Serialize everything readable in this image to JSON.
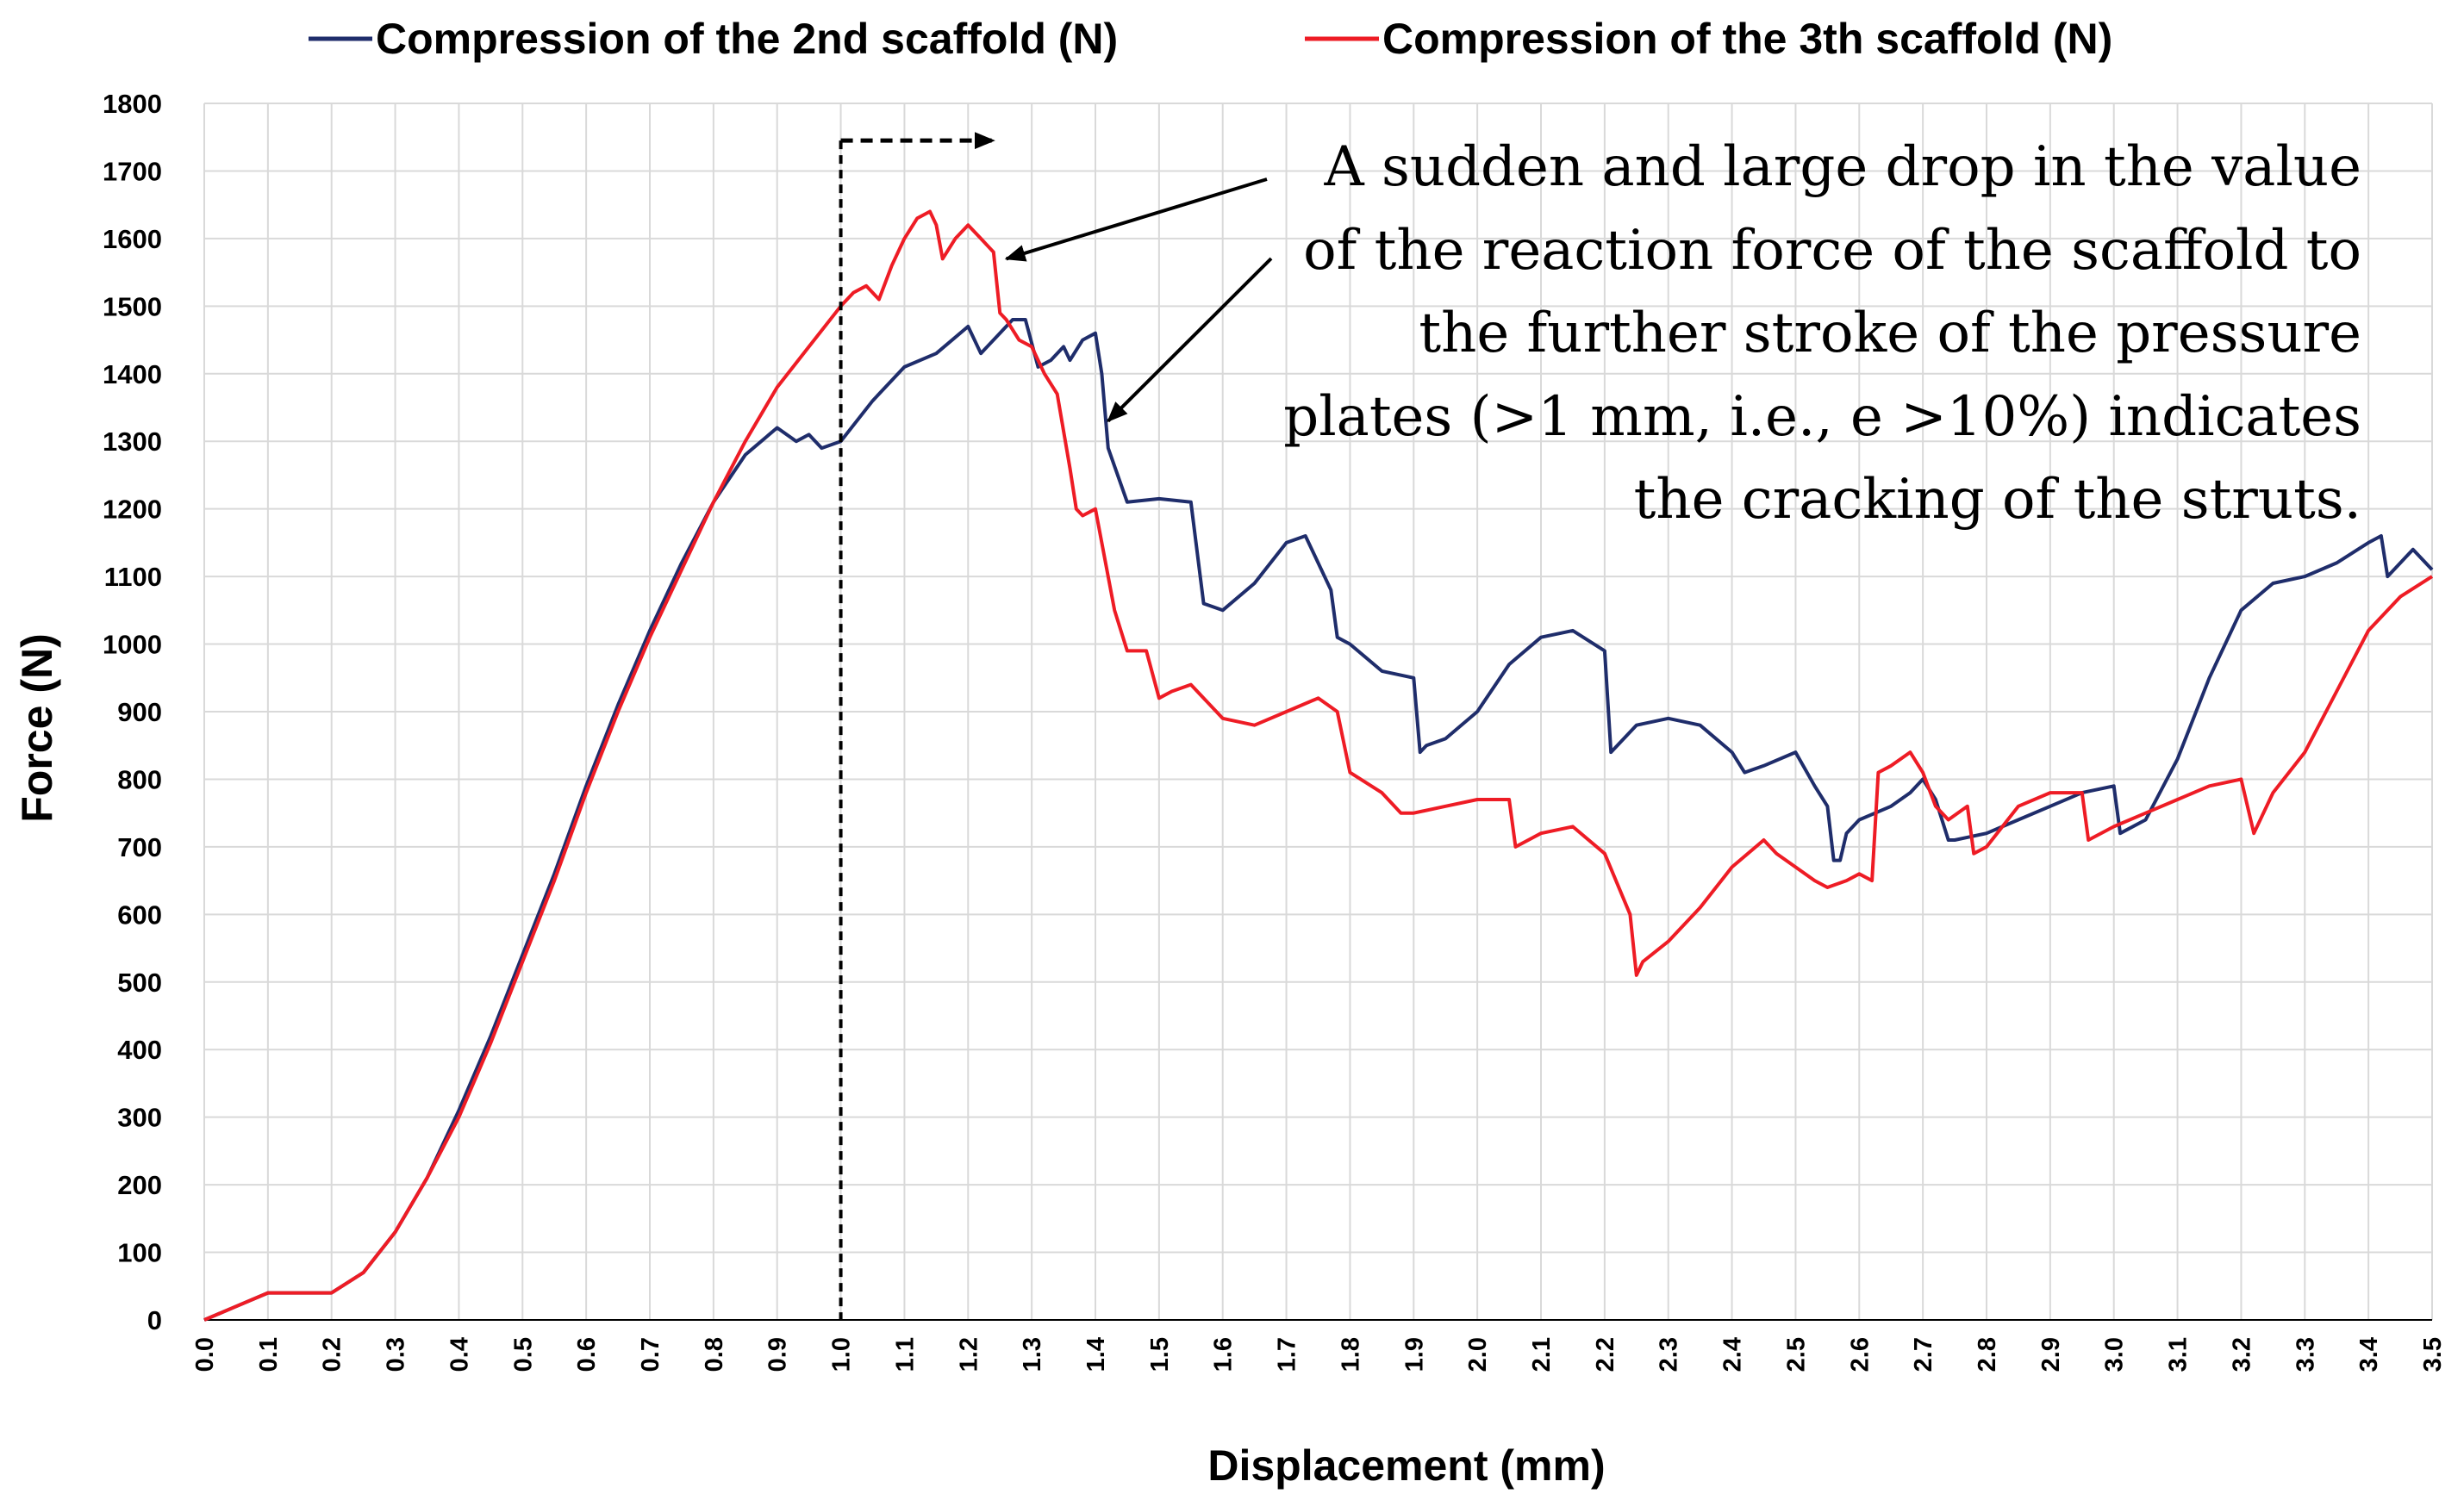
{
  "colors": {
    "series1": "#1f2d6b",
    "series2": "#ee1c25",
    "grid": "#d9d9d9",
    "axis": "#000000"
  },
  "chart_data": {
    "type": "line",
    "xlabel": "Displacement (mm)",
    "ylabel": "Force (N)",
    "xlim": [
      0,
      3.5
    ],
    "ylim": [
      0,
      1800
    ],
    "x_ticks": [
      "0.0",
      "0.1",
      "0.2",
      "0.3",
      "0.4",
      "0.5",
      "0.6",
      "0.7",
      "0.8",
      "0.9",
      "1.0",
      "1.1",
      "1.2",
      "1.3",
      "1.4",
      "1.5",
      "1.6",
      "1.7",
      "1.8",
      "1.9",
      "2.0",
      "2.1",
      "2.2",
      "2.3",
      "2.4",
      "2.5",
      "2.6",
      "2.7",
      "2.8",
      "2.9",
      "3.0",
      "3.1",
      "3.2",
      "3.3",
      "3.4",
      "3.5"
    ],
    "y_ticks": [
      "0",
      "100",
      "200",
      "300",
      "400",
      "500",
      "600",
      "700",
      "800",
      "900",
      "1000",
      "1100",
      "1200",
      "1300",
      "1400",
      "1500",
      "1600",
      "1700",
      "1800"
    ],
    "grid": true,
    "legend_position": "top",
    "series": [
      {
        "name": "Compression of the 2nd scaffold (N)",
        "color": "#1f2d6b",
        "x": [
          0,
          0.05,
          0.1,
          0.15,
          0.2,
          0.25,
          0.3,
          0.35,
          0.4,
          0.45,
          0.5,
          0.55,
          0.6,
          0.65,
          0.7,
          0.75,
          0.8,
          0.85,
          0.9,
          0.93,
          0.95,
          0.97,
          1.0,
          1.05,
          1.1,
          1.15,
          1.2,
          1.22,
          1.25,
          1.27,
          1.29,
          1.31,
          1.33,
          1.35,
          1.36,
          1.38,
          1.4,
          1.41,
          1.42,
          1.45,
          1.5,
          1.55,
          1.57,
          1.6,
          1.65,
          1.7,
          1.73,
          1.75,
          1.77,
          1.78,
          1.8,
          1.85,
          1.9,
          1.91,
          1.92,
          1.95,
          2.0,
          2.05,
          2.1,
          2.15,
          2.2,
          2.21,
          2.25,
          2.3,
          2.35,
          2.4,
          2.42,
          2.45,
          2.5,
          2.53,
          2.55,
          2.56,
          2.57,
          2.58,
          2.6,
          2.65,
          2.68,
          2.7,
          2.72,
          2.74,
          2.75,
          2.8,
          2.85,
          2.9,
          2.95,
          3.0,
          3.01,
          3.05,
          3.1,
          3.15,
          3.2,
          3.25,
          3.3,
          3.35,
          3.4,
          3.42,
          3.43,
          3.45,
          3.47,
          3.5
        ],
        "values": [
          0,
          20,
          40,
          40,
          40,
          70,
          130,
          210,
          310,
          420,
          540,
          660,
          790,
          910,
          1020,
          1120,
          1210,
          1280,
          1320,
          1300,
          1310,
          1290,
          1300,
          1360,
          1410,
          1430,
          1470,
          1430,
          1460,
          1480,
          1480,
          1410,
          1420,
          1440,
          1420,
          1450,
          1460,
          1400,
          1290,
          1210,
          1215,
          1210,
          1060,
          1050,
          1090,
          1150,
          1160,
          1120,
          1080,
          1010,
          1000,
          960,
          950,
          840,
          850,
          860,
          900,
          970,
          1010,
          1020,
          990,
          840,
          880,
          890,
          880,
          840,
          810,
          820,
          840,
          790,
          760,
          680,
          680,
          720,
          740,
          760,
          780,
          800,
          770,
          710,
          710,
          720,
          740,
          760,
          780,
          790,
          720,
          740,
          830,
          950,
          1050,
          1090,
          1100,
          1120,
          1150,
          1160,
          1100,
          1120,
          1140,
          1110
        ]
      },
      {
        "name": "Compression of the 3th scaffold (N)",
        "color": "#ee1c25",
        "x": [
          0,
          0.05,
          0.1,
          0.15,
          0.2,
          0.25,
          0.3,
          0.35,
          0.4,
          0.45,
          0.5,
          0.55,
          0.6,
          0.65,
          0.7,
          0.75,
          0.8,
          0.85,
          0.9,
          0.95,
          1.0,
          1.02,
          1.04,
          1.06,
          1.08,
          1.1,
          1.12,
          1.14,
          1.15,
          1.16,
          1.18,
          1.2,
          1.22,
          1.24,
          1.25,
          1.26,
          1.28,
          1.3,
          1.32,
          1.34,
          1.36,
          1.37,
          1.38,
          1.4,
          1.42,
          1.43,
          1.45,
          1.48,
          1.5,
          1.52,
          1.55,
          1.6,
          1.65,
          1.7,
          1.75,
          1.78,
          1.8,
          1.85,
          1.88,
          1.9,
          1.95,
          2.0,
          2.05,
          2.06,
          2.1,
          2.15,
          2.2,
          2.24,
          2.25,
          2.26,
          2.3,
          2.35,
          2.4,
          2.45,
          2.47,
          2.5,
          2.53,
          2.55,
          2.58,
          2.6,
          2.62,
          2.63,
          2.65,
          2.68,
          2.7,
          2.72,
          2.74,
          2.77,
          2.78,
          2.8,
          2.85,
          2.9,
          2.95,
          2.96,
          3.0,
          3.05,
          3.1,
          3.15,
          3.2,
          3.22,
          3.25,
          3.3,
          3.35,
          3.4,
          3.45,
          3.5
        ],
        "values": [
          0,
          20,
          40,
          40,
          40,
          70,
          130,
          210,
          300,
          410,
          530,
          650,
          780,
          900,
          1010,
          1110,
          1210,
          1300,
          1380,
          1440,
          1500,
          1520,
          1530,
          1510,
          1560,
          1600,
          1630,
          1640,
          1620,
          1570,
          1600,
          1620,
          1600,
          1580,
          1490,
          1480,
          1450,
          1440,
          1400,
          1370,
          1260,
          1200,
          1190,
          1200,
          1100,
          1050,
          990,
          990,
          920,
          930,
          940,
          890,
          880,
          900,
          920,
          900,
          810,
          780,
          750,
          750,
          760,
          770,
          770,
          700,
          720,
          730,
          690,
          600,
          510,
          530,
          560,
          610,
          670,
          710,
          690,
          670,
          650,
          640,
          650,
          660,
          650,
          810,
          820,
          840,
          810,
          760,
          740,
          760,
          690,
          700,
          760,
          780,
          780,
          710,
          730,
          750,
          770,
          790,
          800,
          720,
          780,
          840,
          930,
          1020,
          1070,
          1100
        ]
      }
    ],
    "annotation": {
      "lines": [
        "A sudden and large drop in the value",
        "of the reaction force of the scaffold to",
        "the further stroke of the pressure",
        "plates (>1 mm, i.e., e >10%) indicates",
        "the cracking of the struts."
      ],
      "arrow_targets": [
        {
          "x": 1.26,
          "y": 1570
        },
        {
          "x": 1.42,
          "y": 1330
        }
      ],
      "marker_line_x": 1.0,
      "marker_arrow": {
        "x_from": 1.0,
        "x_to": 1.24,
        "y": 1745
      }
    }
  }
}
